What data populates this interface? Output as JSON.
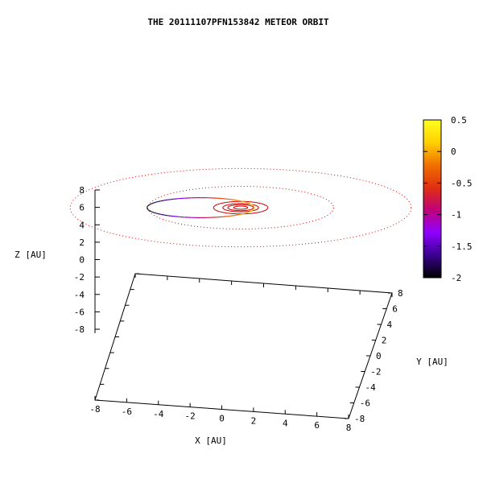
{
  "chart_data": {
    "type": "line",
    "projection": "3d",
    "title": "THE 20111107PFN153842 METEOR ORBIT",
    "xlabel": "X [AU]",
    "ylabel": "Y [AU]",
    "zlabel": "Z [AU]",
    "xlim": [
      -8,
      8
    ],
    "ylim": [
      -8,
      8
    ],
    "zlim": [
      -8,
      8
    ],
    "x_ticks": [
      "-8",
      "-6",
      "-4",
      "-2",
      "0",
      "2",
      "4",
      "6",
      "8"
    ],
    "y_ticks": [
      "-8",
      "-6",
      "-4",
      "-2",
      "0",
      "2",
      "4",
      "6",
      "8"
    ],
    "z_ticks": [
      "8",
      "6",
      "4",
      "2",
      "0",
      "-2",
      "-4",
      "-6",
      "-8"
    ],
    "colorbar": {
      "min": -2,
      "max": 0.5,
      "ticks": [
        "0.5",
        "0",
        "-0.5",
        "-1",
        "-1.5",
        "-2"
      ],
      "palette": [
        "#000000",
        "#3a0090",
        "#8f00ff",
        "#c0007a",
        "#e03010",
        "#f07000",
        "#ffd000",
        "#ffff20"
      ]
    },
    "series": [
      {
        "kind": "planet-orbit",
        "radius": 0.39,
        "style": "solid",
        "color": "#cc0000"
      },
      {
        "kind": "planet-orbit",
        "radius": 0.72,
        "style": "solid",
        "color": "#cc0000"
      },
      {
        "kind": "planet-orbit",
        "radius": 1.0,
        "style": "solid",
        "color": "#cc0000"
      },
      {
        "kind": "planet-orbit",
        "radius": 1.52,
        "style": "solid",
        "color": "#cc0000"
      },
      {
        "kind": "planet-orbit",
        "radius": 5.2,
        "style": "dotted",
        "color": "#dd0000"
      },
      {
        "kind": "planet-orbit",
        "radius": 9.54,
        "style": "dotted",
        "color": "#dd0000"
      },
      {
        "kind": "meteoroid-orbit",
        "semi_major_axis": 3.1,
        "eccentricity": 0.7,
        "colored_by_z": true
      }
    ]
  }
}
